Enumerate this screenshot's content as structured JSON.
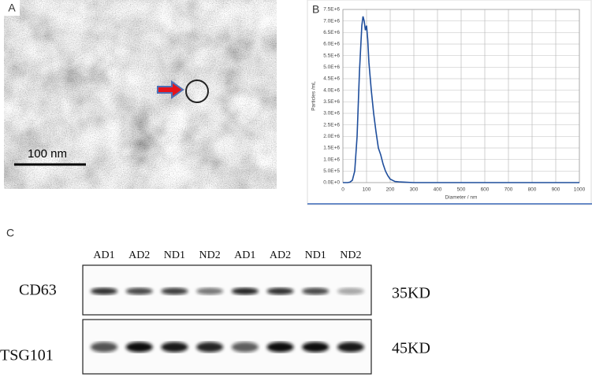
{
  "panel_labels": [
    "A",
    "B",
    "C"
  ],
  "tem": {
    "scale_label": "100 nm"
  },
  "chart_data": {
    "type": "line",
    "ylabel": "Particles /mL",
    "xlabel": "Diameter / nm",
    "x": [
      0,
      10,
      20,
      30,
      40,
      50,
      60,
      70,
      80,
      85,
      90,
      95,
      100,
      105,
      110,
      120,
      130,
      140,
      150,
      160,
      170,
      180,
      190,
      200,
      210,
      220,
      240,
      260,
      300,
      400,
      1000
    ],
    "values": [
      0,
      0,
      0,
      20000,
      100000,
      500000,
      2000000,
      4800000,
      6800000,
      7200000,
      7000000,
      6600000,
      6800000,
      6200000,
      5200000,
      4000000,
      3000000,
      2200000,
      1500000,
      1200000,
      800000,
      500000,
      300000,
      150000,
      100000,
      50000,
      30000,
      20000,
      0,
      0,
      0
    ],
    "color": "#1f4e9c",
    "xlim": [
      0,
      1000
    ],
    "ylim": [
      0,
      7500000
    ],
    "xticks": [
      0,
      100,
      200,
      300,
      400,
      500,
      600,
      700,
      800,
      900,
      1000
    ],
    "yticks": [
      {
        "value": 0,
        "label": "0.0E+0"
      },
      {
        "value": 500000,
        "label": "5.0E+5"
      },
      {
        "value": 1000000,
        "label": "1.0E+6"
      },
      {
        "value": 1500000,
        "label": "1.5E+6"
      },
      {
        "value": 2000000,
        "label": "2.0E+6"
      },
      {
        "value": 2500000,
        "label": "2.5E+6"
      },
      {
        "value": 3000000,
        "label": "3.0E+6"
      },
      {
        "value": 3500000,
        "label": "3.5E+6"
      },
      {
        "value": 4000000,
        "label": "4.0E+6"
      },
      {
        "value": 4500000,
        "label": "4.5E+6"
      },
      {
        "value": 5000000,
        "label": "5.0E+6"
      },
      {
        "value": 5500000,
        "label": "5.5E+6"
      },
      {
        "value": 6000000,
        "label": "6.0E+6"
      },
      {
        "value": 6500000,
        "label": "6.5E+6"
      },
      {
        "value": 7000000,
        "label": "7.0E+6"
      },
      {
        "value": 7500000,
        "label": "7.5E+6"
      }
    ],
    "grid": true
  },
  "western_blot": {
    "lanes": [
      "AD1",
      "AD2",
      "ND1",
      "ND2",
      "AD1",
      "AD2",
      "ND1",
      "ND2"
    ],
    "rows": [
      {
        "protein": "CD63",
        "size": "35KD"
      },
      {
        "protein": "TSG101",
        "size": "45KD"
      }
    ]
  }
}
